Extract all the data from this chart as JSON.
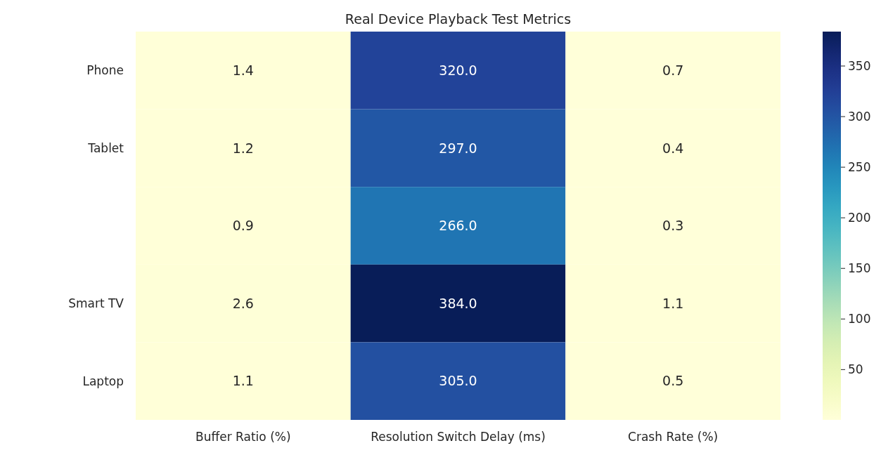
{
  "chart_data": {
    "type": "heatmap",
    "title": "Real Device Playback Test Metrics",
    "categories": [
      "Buffer Ratio (%)",
      "Resolution Switch Delay (ms)",
      "Crash Rate (%)"
    ],
    "y_categories": [
      "Phone",
      "Tablet",
      null,
      "Smart TV",
      "Laptop"
    ],
    "cells": [
      [
        1.4,
        320,
        0.7
      ],
      [
        1.2,
        297,
        0.4
      ],
      [
        0.9,
        266,
        0.3
      ],
      [
        2.6,
        384,
        1.1
      ],
      [
        1.1,
        305,
        0.5
      ]
    ],
    "cell_labels": [
      [
        "1.4",
        "320.0",
        "0.7"
      ],
      [
        "1.2",
        "297.0",
        "0.4"
      ],
      [
        "0.9",
        "266.0",
        "0.3"
      ],
      [
        "2.6",
        "384.0",
        "1.1"
      ],
      [
        "1.1",
        "305.0",
        "0.5"
      ]
    ],
    "clim": [
      0.3,
      384
    ],
    "cticks": [
      50,
      100,
      150,
      200,
      250,
      300,
      350
    ]
  }
}
